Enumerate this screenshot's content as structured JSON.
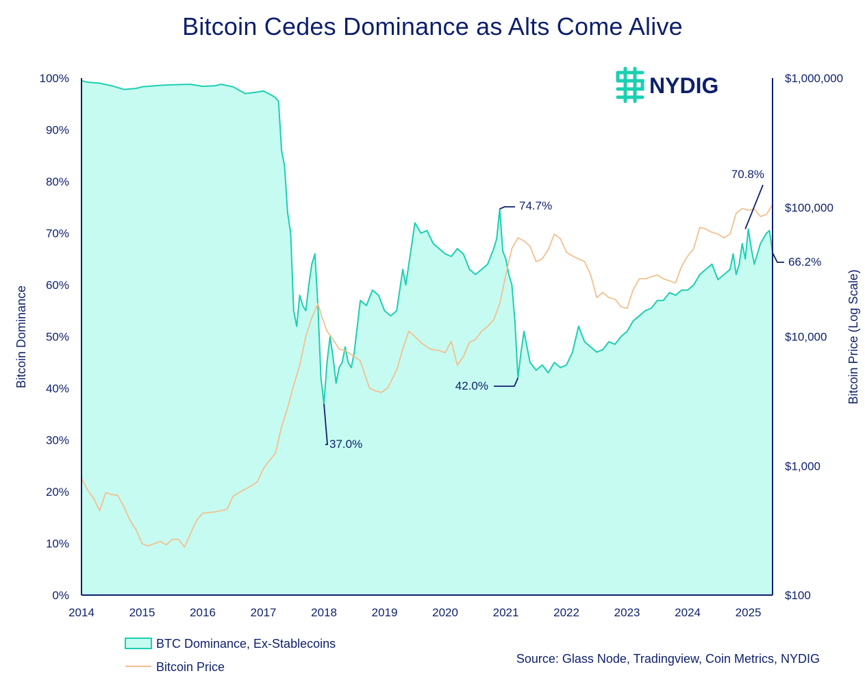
{
  "chart_data": {
    "type": "area",
    "title": "Bitcoin Cedes Dominance as Alts Come Alive",
    "logo": "NYDIG",
    "source": "Source: Glass Node, Tradingview, Coin Metrics, NYDIG",
    "y_left_label": "Bitcoin Dominance",
    "y_right_label": "Bitcoin Price (Log Scale)",
    "y_left_ticks": [
      "100%",
      "90%",
      "80%",
      "70%",
      "60%",
      "50%",
      "40%",
      "30%",
      "20%",
      "10%",
      "0%"
    ],
    "y_right_ticks": [
      "$1,000,000",
      "$100,000",
      "$10,000",
      "$1,000",
      "$100"
    ],
    "x_ticks": [
      "2014",
      "2015",
      "2016",
      "2017",
      "2018",
      "2019",
      "2020",
      "2021",
      "2022",
      "2023",
      "2024",
      "2025"
    ],
    "ylim_left": [
      0,
      100
    ],
    "ylim_right_log": [
      100,
      1000000
    ],
    "xlim": [
      2014.0,
      2025.4
    ],
    "grid": false,
    "legend_position": "bottom-left",
    "colors": {
      "dominance_fill": "#c6fbf1",
      "dominance_line": "#1ccfb0",
      "price_line": "#f2c08e",
      "text": "#0d1f6b"
    },
    "series": [
      {
        "name": "BTC Dominance, Ex-Stablecoins",
        "unit": "percent",
        "x": [
          2014.0,
          2014.1,
          2014.3,
          2014.5,
          2014.7,
          2014.9,
          2015.0,
          2015.3,
          2015.5,
          2015.8,
          2016.0,
          2016.2,
          2016.3,
          2016.5,
          2016.7,
          2016.9,
          2017.0,
          2017.05,
          2017.1,
          2017.15,
          2017.2,
          2017.25,
          2017.3,
          2017.35,
          2017.4,
          2017.45,
          2017.5,
          2017.55,
          2017.6,
          2017.65,
          2017.7,
          2017.75,
          2017.8,
          2017.85,
          2017.9,
          2017.95,
          2018.0,
          2018.05,
          2018.1,
          2018.15,
          2018.2,
          2018.25,
          2018.3,
          2018.35,
          2018.4,
          2018.45,
          2018.5,
          2018.55,
          2018.6,
          2018.7,
          2018.8,
          2018.9,
          2019.0,
          2019.1,
          2019.2,
          2019.3,
          2019.35,
          2019.45,
          2019.5,
          2019.6,
          2019.7,
          2019.8,
          2019.9,
          2020.0,
          2020.1,
          2020.2,
          2020.3,
          2020.4,
          2020.5,
          2020.6,
          2020.7,
          2020.8,
          2020.85,
          2020.9,
          2020.95,
          2021.0,
          2021.05,
          2021.1,
          2021.15,
          2021.2,
          2021.25,
          2021.3,
          2021.35,
          2021.4,
          2021.5,
          2021.6,
          2021.7,
          2021.8,
          2021.9,
          2022.0,
          2022.1,
          2022.2,
          2022.3,
          2022.4,
          2022.5,
          2022.6,
          2022.7,
          2022.8,
          2022.9,
          2023.0,
          2023.1,
          2023.2,
          2023.3,
          2023.4,
          2023.5,
          2023.6,
          2023.7,
          2023.8,
          2023.9,
          2024.0,
          2024.1,
          2024.2,
          2024.3,
          2024.4,
          2024.5,
          2024.6,
          2024.7,
          2024.75,
          2024.8,
          2024.85,
          2024.9,
          2024.95,
          2025.0,
          2025.05,
          2025.1,
          2025.15,
          2025.2,
          2025.25,
          2025.3,
          2025.35,
          2025.4
        ],
        "y": [
          99.5,
          99.2,
          99.0,
          98.5,
          97.8,
          98.0,
          98.3,
          98.6,
          98.7,
          98.8,
          98.4,
          98.5,
          98.8,
          98.3,
          97.0,
          97.3,
          97.5,
          97.2,
          96.9,
          96.6,
          96.2,
          95.5,
          86.0,
          83.0,
          74.0,
          70.0,
          55.0,
          52.0,
          58.0,
          56.0,
          55.0,
          60.0,
          64.0,
          66.0,
          56.0,
          42.0,
          37.0,
          45.0,
          50.0,
          46.0,
          41.0,
          44.0,
          45.0,
          48.0,
          45.0,
          44.0,
          47.0,
          52.0,
          57.0,
          56.0,
          59.0,
          58.0,
          55.0,
          54.0,
          55.0,
          63.0,
          60.0,
          68.0,
          72.0,
          70.0,
          70.5,
          68.0,
          67.0,
          66.0,
          65.5,
          67.0,
          66.0,
          63.0,
          62.0,
          63.0,
          64.0,
          67.0,
          69.0,
          74.7,
          66.5,
          65.0,
          62.0,
          60.0,
          53.0,
          42.0,
          47.0,
          51.0,
          48.0,
          45.0,
          43.5,
          44.5,
          43.0,
          45.0,
          44.0,
          44.5,
          47.0,
          52.0,
          49.0,
          48.0,
          47.0,
          47.5,
          49.0,
          48.5,
          50.0,
          51.0,
          53.0,
          54.0,
          55.0,
          55.5,
          57.0,
          57.0,
          58.5,
          58.0,
          59.0,
          59.0,
          60.0,
          62.0,
          63.0,
          64.0,
          61.0,
          62.0,
          63.0,
          66.0,
          62.0,
          64.0,
          68.0,
          65.0,
          70.8,
          67.0,
          64.0,
          66.0,
          68.0,
          69.0,
          70.0,
          70.5,
          66.2
        ]
      },
      {
        "name": "Bitcoin Price",
        "unit": "USD",
        "x": [
          2014.0,
          2014.1,
          2014.2,
          2014.3,
          2014.4,
          2014.5,
          2014.6,
          2014.7,
          2014.8,
          2014.9,
          2015.0,
          2015.1,
          2015.2,
          2015.3,
          2015.4,
          2015.5,
          2015.6,
          2015.7,
          2015.8,
          2015.9,
          2016.0,
          2016.2,
          2016.4,
          2016.5,
          2016.6,
          2016.8,
          2016.9,
          2017.0,
          2017.1,
          2017.2,
          2017.3,
          2017.4,
          2017.5,
          2017.6,
          2017.7,
          2017.8,
          2017.9,
          2017.97,
          2018.05,
          2018.15,
          2018.25,
          2018.35,
          2018.5,
          2018.6,
          2018.75,
          2018.85,
          2018.95,
          2019.05,
          2019.2,
          2019.3,
          2019.4,
          2019.5,
          2019.6,
          2019.75,
          2019.9,
          2020.0,
          2020.1,
          2020.2,
          2020.3,
          2020.4,
          2020.5,
          2020.6,
          2020.7,
          2020.8,
          2020.9,
          2021.0,
          2021.1,
          2021.2,
          2021.3,
          2021.4,
          2021.5,
          2021.6,
          2021.7,
          2021.8,
          2021.9,
          2022.0,
          2022.1,
          2022.2,
          2022.3,
          2022.4,
          2022.5,
          2022.6,
          2022.7,
          2022.8,
          2022.9,
          2023.0,
          2023.1,
          2023.2,
          2023.3,
          2023.4,
          2023.5,
          2023.6,
          2023.7,
          2023.8,
          2023.9,
          2024.0,
          2024.1,
          2024.2,
          2024.3,
          2024.4,
          2024.5,
          2024.6,
          2024.7,
          2024.8,
          2024.9,
          2025.0,
          2025.1,
          2025.2,
          2025.3,
          2025.4
        ],
        "y": [
          800,
          650,
          560,
          450,
          620,
          600,
          590,
          480,
          380,
          320,
          250,
          240,
          250,
          260,
          245,
          270,
          270,
          235,
          300,
          380,
          430,
          440,
          460,
          580,
          620,
          700,
          750,
          950,
          1100,
          1250,
          2000,
          2800,
          4200,
          6000,
          10000,
          14000,
          18000,
          14000,
          11000,
          9500,
          8000,
          7800,
          7000,
          6500,
          4000,
          3800,
          3700,
          4000,
          5500,
          8000,
          11000,
          10000,
          9000,
          8000,
          7800,
          7500,
          9200,
          6000,
          7000,
          9000,
          9500,
          11000,
          12000,
          13500,
          18000,
          30000,
          48000,
          58000,
          55000,
          50000,
          38000,
          40000,
          47000,
          62000,
          57000,
          45000,
          42000,
          40000,
          38000,
          30000,
          20000,
          22000,
          20000,
          19500,
          17000,
          16500,
          23000,
          28000,
          28000,
          29000,
          30000,
          28000,
          27000,
          26000,
          35000,
          42000,
          48000,
          70000,
          68000,
          64000,
          62000,
          58000,
          62000,
          90000,
          98000,
          95000,
          97000,
          85000,
          88000,
          105000
        ]
      }
    ],
    "annotations": [
      {
        "label": "37.0%",
        "x": 2018.0,
        "y": 37.0
      },
      {
        "label": "74.7%",
        "x": 2020.9,
        "y": 74.7
      },
      {
        "label": "42.0%",
        "x": 2021.2,
        "y": 42.0
      },
      {
        "label": "70.8%",
        "x": 2024.95,
        "y": 70.8
      },
      {
        "label": "66.2%",
        "x": 2025.4,
        "y": 66.2
      }
    ]
  }
}
